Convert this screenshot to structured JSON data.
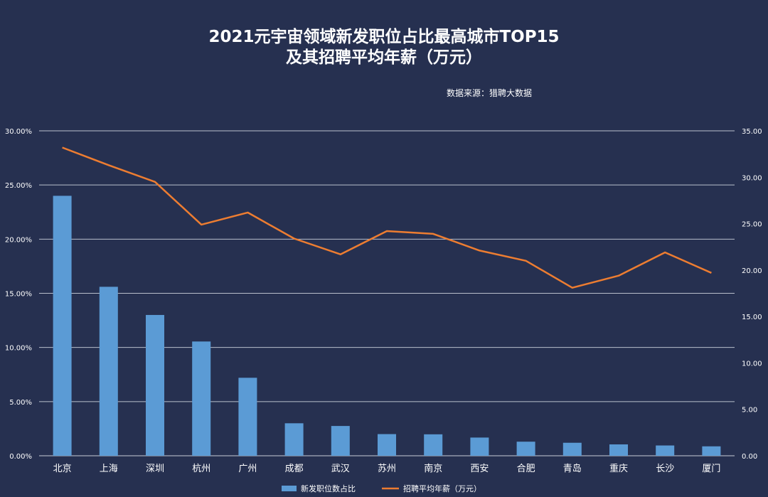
{
  "chart_data": {
    "type": "bar+line",
    "title_line1": "2021元宇宙领域新发职位占比最高城市TOP15",
    "title_line2": "及其招聘平均年薪（万元）",
    "source": "数据来源：猎聘大数据",
    "categories": [
      "北京",
      "上海",
      "深圳",
      "杭州",
      "广州",
      "成都",
      "武汉",
      "苏州",
      "南京",
      "西安",
      "合肥",
      "青岛",
      "重庆",
      "长沙",
      "厦门"
    ],
    "series": [
      {
        "name": "新发职位数占比",
        "type": "bar",
        "axis": "left",
        "color": "#5b9bd5",
        "values": [
          24.0,
          15.6,
          13.0,
          10.55,
          7.2,
          3.0,
          2.75,
          2.0,
          1.98,
          1.68,
          1.3,
          1.2,
          1.05,
          0.95,
          0.87
        ]
      },
      {
        "name": "招聘平均年薪（万元）",
        "type": "line",
        "axis": "right",
        "color": "#ed7d31",
        "values": [
          33.2,
          31.3,
          29.5,
          24.9,
          26.2,
          23.4,
          21.7,
          24.2,
          23.9,
          22.1,
          21.0,
          18.1,
          19.4,
          21.9,
          19.7
        ]
      }
    ],
    "y_left": {
      "min": 0,
      "max": 30,
      "ticks": [
        "0.00%",
        "5.00%",
        "10.00%",
        "15.00%",
        "20.00%",
        "25.00%",
        "30.00%"
      ]
    },
    "y_right": {
      "min": 0,
      "max": 35,
      "ticks": [
        "0.00",
        "5.00",
        "10.00",
        "15.00",
        "20.00",
        "25.00",
        "30.00",
        "35.00"
      ]
    },
    "grid": true,
    "legend_position": "bottom"
  }
}
